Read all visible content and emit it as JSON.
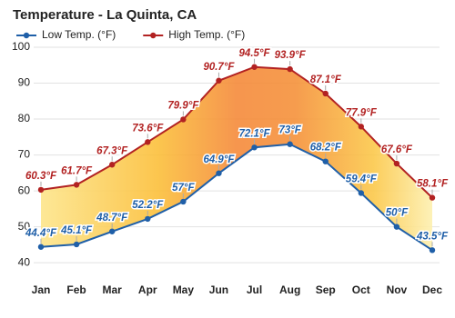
{
  "chart_data": {
    "type": "line",
    "title": "Temperature - La Quinta, CA",
    "categories": [
      "Jan",
      "Feb",
      "Mar",
      "Apr",
      "May",
      "Jun",
      "Jul",
      "Aug",
      "Sep",
      "Oct",
      "Nov",
      "Dec"
    ],
    "series": [
      {
        "name": "Low Temp. (°F)",
        "color": "#1f5fa8",
        "values": [
          44.4,
          45.1,
          48.7,
          52.2,
          57,
          64.9,
          72.1,
          73,
          68.2,
          59.4,
          50,
          43.5
        ],
        "value_labels": [
          "44.4°F",
          "45.1°F",
          "48.7°F",
          "52.2°F",
          "57°F",
          "64.9°F",
          "72.1°F",
          "73°F",
          "68.2°F",
          "59.4°F",
          "50°F",
          "43.5°F"
        ]
      },
      {
        "name": "High Temp. (°F)",
        "color": "#b22222",
        "values": [
          60.3,
          61.7,
          67.3,
          73.6,
          79.9,
          90.7,
          94.5,
          93.9,
          87.1,
          77.9,
          67.6,
          58.1
        ],
        "value_labels": [
          "60.3°F",
          "61.7°F",
          "67.3°F",
          "73.6°F",
          "79.9°F",
          "90.7°F",
          "94.5°F",
          "93.9°F",
          "87.1°F",
          "77.9°F",
          "67.6°F",
          "58.1°F"
        ]
      }
    ],
    "ylim": [
      37,
      100
    ],
    "yticks": [
      40,
      50,
      60,
      70,
      80,
      90,
      100
    ],
    "grid": true
  }
}
